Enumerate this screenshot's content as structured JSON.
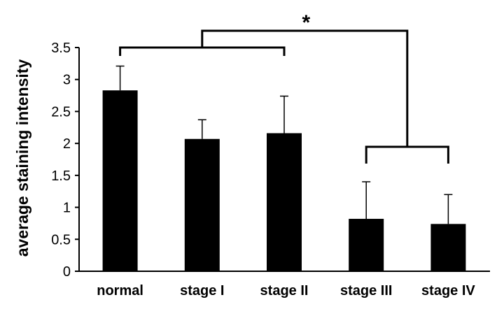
{
  "chart_data": {
    "type": "bar",
    "title": "",
    "xlabel": "",
    "ylabel": "average staining intensity",
    "categories": [
      "normal",
      "stage I",
      "stage II",
      "stage III",
      "stage IV"
    ],
    "values": [
      2.83,
      2.07,
      2.16,
      0.82,
      0.74
    ],
    "error_plus": [
      0.38,
      0.3,
      0.58,
      0.58,
      0.46
    ],
    "ylim": [
      0,
      3.5
    ],
    "yticks": [
      "0",
      "0.5",
      "1",
      "1.5",
      "2",
      "2.5",
      "3",
      "3.5"
    ],
    "grid": false,
    "bar_color": "#000000",
    "annotation": {
      "text": "*",
      "compares": [
        [
          "normal",
          "stage I",
          "stage II"
        ],
        [
          "stage III",
          "stage IV"
        ]
      ]
    }
  }
}
